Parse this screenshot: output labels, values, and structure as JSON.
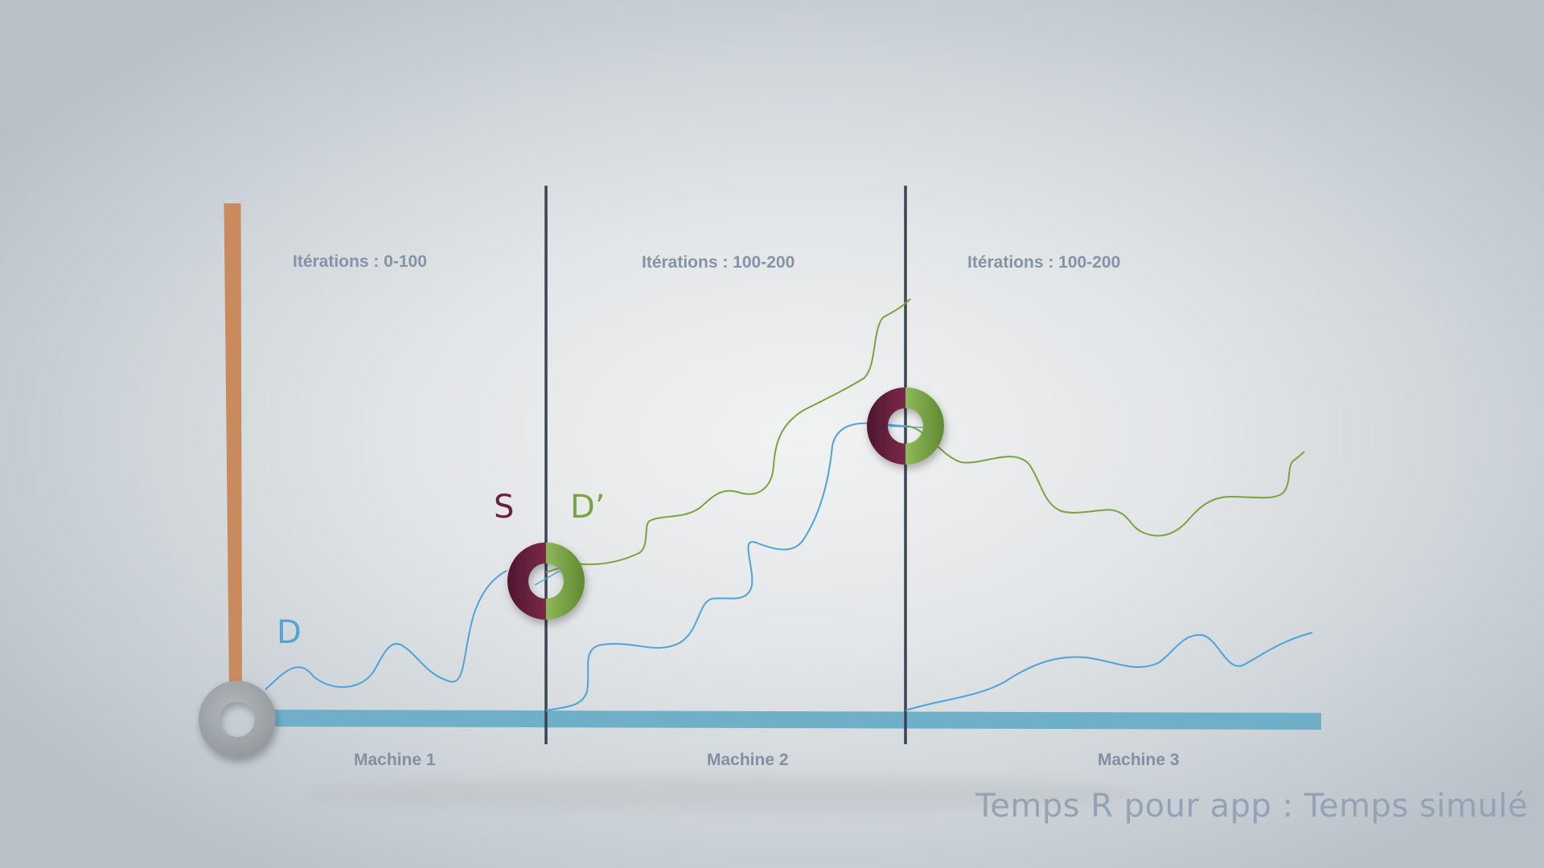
{
  "diagram": {
    "letters": {
      "d": "D",
      "s": "S",
      "d_prime": "D’"
    },
    "iterations": [
      "Itérations : 0-100",
      "Itérations : 100-200",
      "Itérations : 100-200"
    ],
    "machines": [
      "Machine 1",
      "Machine 2",
      "Machine 3"
    ],
    "caption": "Temps R pour app : Temps simulé",
    "colors": {
      "vertical_axis": "#c98a5e",
      "timeline": "#6fb0c8",
      "blue_curve": "#4ea3d8",
      "green_curve": "#79a541",
      "node_s": "#6a1f3d",
      "node_d_prime": "#79a541",
      "divider": "#3b4452",
      "origin_node": "#a2a7ab",
      "label_text": "#8593a6"
    }
  }
}
